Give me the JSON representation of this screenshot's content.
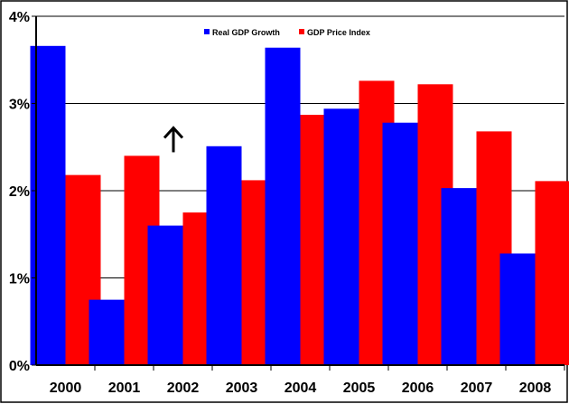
{
  "chart_data": {
    "type": "bar",
    "title": "",
    "xlabel": "",
    "ylabel": "",
    "categories": [
      "2000",
      "2001",
      "2002",
      "2003",
      "2004",
      "2005",
      "2006",
      "2007",
      "2008"
    ],
    "series": [
      {
        "name": "Real GDP Growth",
        "color": "#0000ff",
        "values": [
          3.66,
          0.75,
          1.6,
          2.51,
          3.64,
          2.94,
          2.78,
          2.03,
          1.28
        ]
      },
      {
        "name": "GDP Price Index",
        "color": "#ff0000",
        "values": [
          2.18,
          2.4,
          1.75,
          2.12,
          2.87,
          3.26,
          3.22,
          2.68,
          2.11
        ]
      }
    ],
    "ylim": [
      0,
      4
    ],
    "yticks": [
      0,
      1,
      2,
      3,
      4
    ],
    "ytick_labels": [
      "0%",
      "1%",
      "2%",
      "3%",
      "4%"
    ],
    "grid": true,
    "legend_position": "top-center",
    "annotation": {
      "type": "up-arrow",
      "category": "2002",
      "y_value": 2.7
    }
  }
}
